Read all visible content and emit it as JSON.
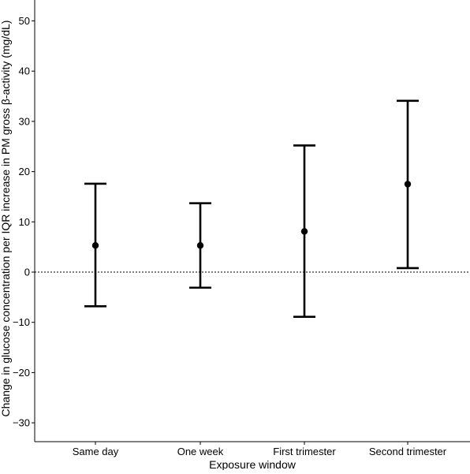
{
  "chart_data": {
    "type": "scatter",
    "title": "",
    "xlabel": "Exposure window",
    "ylabel": "Change in glucose concentration per IQR increase in PM gross β-activity (mg/dL)",
    "categories": [
      "Same day",
      "One week",
      "First trimester",
      "Second trimester"
    ],
    "estimate": [
      5.3,
      5.3,
      8.1,
      17.5
    ],
    "lower": [
      -6.8,
      -3.1,
      -8.9,
      0.8
    ],
    "upper": [
      17.6,
      13.7,
      25.2,
      34.1
    ],
    "ylim": [
      -34,
      54
    ],
    "yticks": [
      -30,
      -20,
      -10,
      0,
      10,
      20,
      30,
      40,
      50
    ],
    "reference_line": {
      "y": 0,
      "style": "dotted"
    },
    "grid": false,
    "colors": {
      "marks": "#000000",
      "axis": "#000000"
    }
  }
}
